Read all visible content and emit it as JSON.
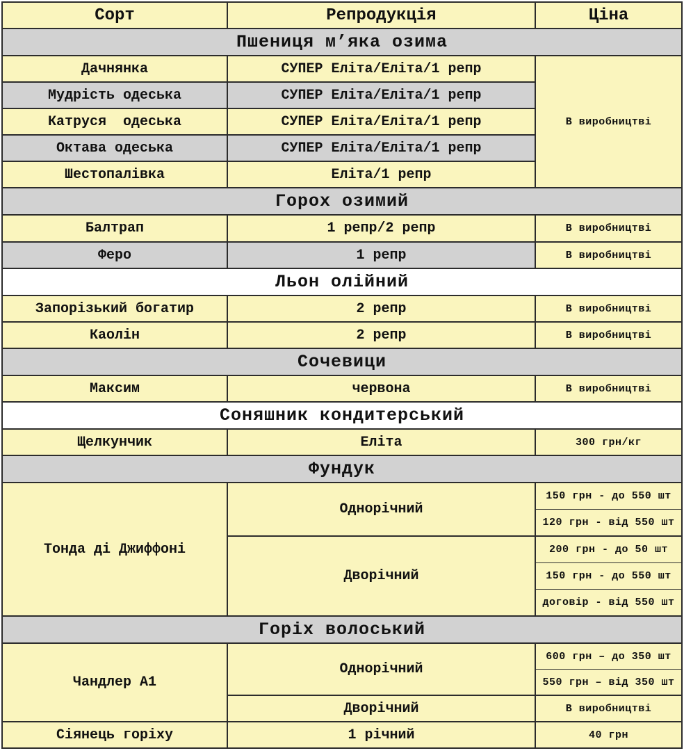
{
  "header": {
    "variety": "Сорт",
    "reproduction": "Репродукція",
    "price": "Ціна"
  },
  "sections": {
    "wheat": {
      "title": "Пшениця м’яка озима",
      "rows": [
        {
          "variety": "Дачнянка",
          "reproduction": "СУПЕР Еліта/Еліта/1 репр"
        },
        {
          "variety": "Мудрість одеська",
          "reproduction": "СУПЕР Еліта/Еліта/1 репр"
        },
        {
          "variety": "Катруся  одеська",
          "reproduction": "СУПЕР Еліта/Еліта/1 репр"
        },
        {
          "variety": "Октава одеська",
          "reproduction": "СУПЕР Еліта/Еліта/1 репр"
        },
        {
          "variety": "Шестопалівка",
          "reproduction": "Еліта/1 репр"
        }
      ],
      "merged_price": "В виробництві"
    },
    "peas": {
      "title": "Горох озимий",
      "rows": [
        {
          "variety": "Балтрап",
          "reproduction": "1 репр/2 репр",
          "price": "В виробництві"
        },
        {
          "variety": "Феро",
          "reproduction": "1 репр",
          "price": "В виробництві"
        }
      ]
    },
    "flax": {
      "title": "Льон олійний",
      "rows": [
        {
          "variety": "Запорізький богатир",
          "reproduction": "2 репр",
          "price": "В виробництві"
        },
        {
          "variety": "Каолін",
          "reproduction": "2 репр",
          "price": "В виробництві"
        }
      ]
    },
    "lentil": {
      "title": "Сочевици",
      "rows": [
        {
          "variety": "Максим",
          "reproduction": "червона",
          "price": "В виробництві"
        }
      ]
    },
    "sunflower": {
      "title": "Соняшник кондитерський",
      "rows": [
        {
          "variety": "Щелкунчик",
          "reproduction": "Еліта",
          "price": "300 грн/кг"
        }
      ]
    },
    "hazelnut": {
      "title": "Фундук",
      "variety": "Тонда ді Джиффоні",
      "age_groups": [
        {
          "label": "Однорічний",
          "prices": [
            "150 грн - до 550 шт",
            "120 грн - від 550 шт"
          ]
        },
        {
          "label": "Дворічний",
          "prices": [
            "200 грн - до 50 шт",
            "150 грн - до 550 шт",
            "договір - від 550 шт"
          ]
        }
      ]
    },
    "walnut": {
      "title": "Горіх волоський",
      "variety": "Чандлер А1",
      "age_groups": [
        {
          "label": "Однорічний",
          "prices": [
            "600 грн – до 350 шт",
            "550 грн – від 350 шт"
          ]
        },
        {
          "label": "Дворічний",
          "prices": [
            "В виробництві"
          ]
        }
      ],
      "seedling_row": {
        "variety": "Сіянець горіху",
        "reproduction": "1 річний",
        "price": "40 грн"
      }
    }
  }
}
